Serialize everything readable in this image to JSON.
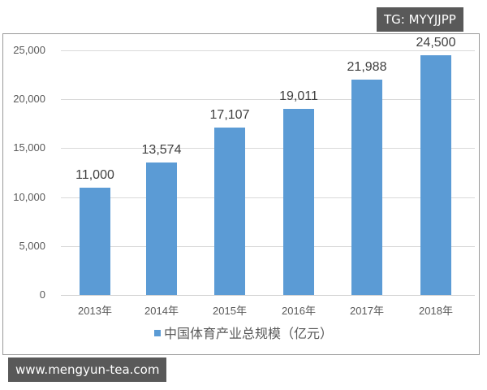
{
  "watermarks": {
    "top": "TG: MYYJJPP",
    "bottom": "www.mengyun-tea.com"
  },
  "colors": {
    "bar": "#5b9bd5",
    "gridline": "#d9d9d9",
    "watermark_bg": "#595959"
  },
  "chart_data": {
    "type": "bar",
    "title": "",
    "xlabel": "",
    "ylabel": "",
    "categories": [
      "2013年",
      "2014年",
      "2015年",
      "2016年",
      "2017年",
      "2018年"
    ],
    "series": [
      {
        "name": "中国体育产业总规模（亿元）",
        "values": [
          11000,
          13574,
          17107,
          19011,
          21988,
          24500
        ],
        "labels": [
          "11,000",
          "13,574",
          "17,107",
          "19,011",
          "21,988",
          "24,500"
        ]
      }
    ],
    "ylim": [
      0,
      25000
    ],
    "yticks": [
      0,
      5000,
      10000,
      15000,
      20000,
      25000
    ],
    "ytick_labels": [
      "0",
      "5,000",
      "10,000",
      "15,000",
      "20,000",
      "25,000"
    ],
    "grid": true,
    "legend_position": "bottom"
  },
  "legend": {
    "label": "中国体育产业总规模（亿元）"
  }
}
